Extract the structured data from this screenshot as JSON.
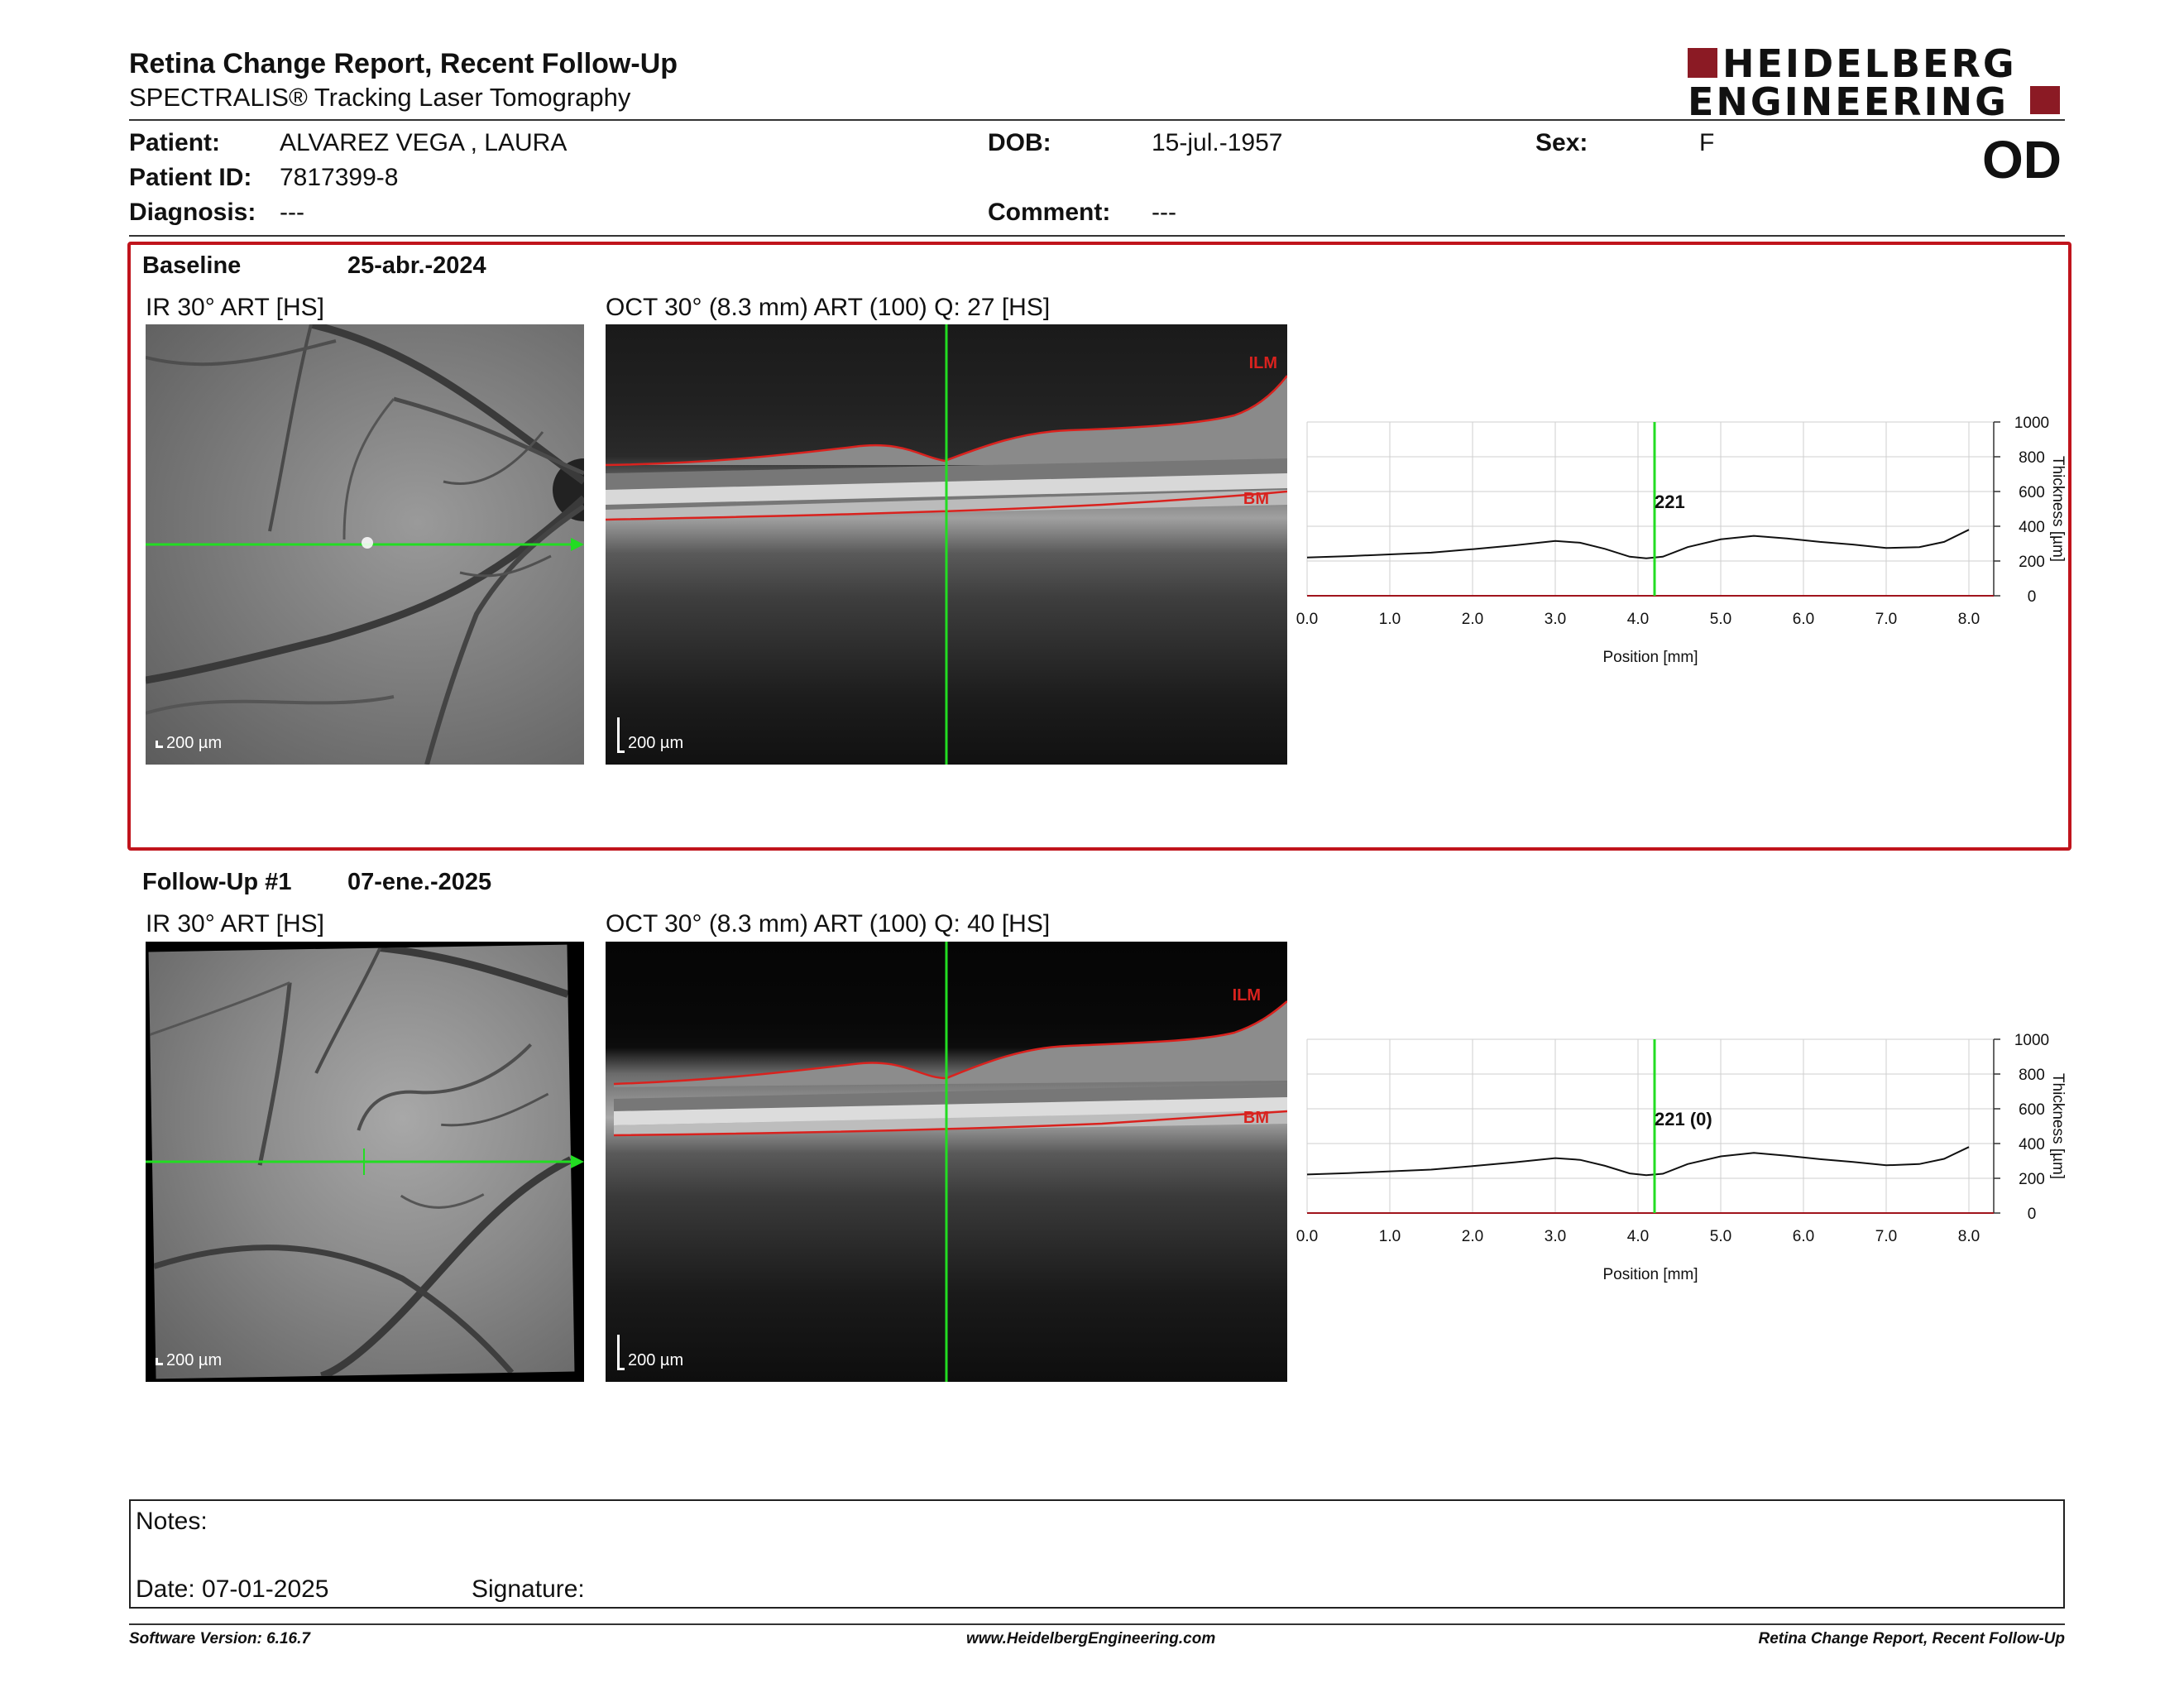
{
  "header": {
    "title": "Retina Change Report, Recent Follow-Up",
    "subtitle": "SPECTRALIS® Tracking Laser Tomography",
    "logo_line1": "HEIDELBERG",
    "logo_line2": "ENGINEERING",
    "eye": "OD",
    "brand_color": "#8b1a24"
  },
  "patient": {
    "patient_label": "Patient:",
    "patient_value": "ALVAREZ VEGA , LAURA",
    "id_label": "Patient ID:",
    "id_value": "7817399-8",
    "diagnosis_label": "Diagnosis:",
    "diagnosis_value": "---",
    "dob_label": "DOB:",
    "dob_value": "15-jul.-1957",
    "comment_label": "Comment:",
    "comment_value": "---",
    "sex_label": "Sex:",
    "sex_value": "F"
  },
  "baseline": {
    "label": "Baseline",
    "date": "25-abr.-2024",
    "ir_title": "IR 30° ART [HS]",
    "oct_title": "OCT 30° (8.3 mm) ART (100) Q: 27 [HS]",
    "scale_ir": "200 µm",
    "scale_oct": "200 µm",
    "ilm_label": "ILM",
    "bm_label": "BM",
    "cursor_value": "221",
    "highlight_color": "#c0141c"
  },
  "followup": {
    "label": "Follow-Up #1",
    "date": "07-ene.-2025",
    "ir_title": "IR 30° ART [HS]",
    "oct_title": "OCT 30° (8.3 mm) ART (100) Q: 40 [HS]",
    "scale_ir": "200 µm",
    "scale_oct": "200 µm",
    "ilm_label": "ILM",
    "bm_label": "BM",
    "cursor_value": "221 (0)"
  },
  "chart_data": [
    {
      "type": "line",
      "x": [
        0.0,
        0.5,
        1.0,
        1.5,
        2.0,
        2.5,
        3.0,
        3.3,
        3.6,
        3.9,
        4.1,
        4.3,
        4.6,
        5.0,
        5.4,
        5.8,
        6.2,
        6.6,
        7.0,
        7.4,
        7.7,
        8.0
      ],
      "series": [
        {
          "values": [
            220,
            228,
            238,
            248,
            268,
            290,
            315,
            305,
            270,
            225,
            215,
            225,
            280,
            325,
            345,
            330,
            310,
            295,
            275,
            280,
            310,
            380
          ]
        }
      ],
      "xticks": [
        "0.0",
        "1.0",
        "2.0",
        "3.0",
        "4.0",
        "5.0",
        "6.0",
        "7.0",
        "8.0"
      ],
      "yticks": [
        "0",
        "200",
        "400",
        "600",
        "800",
        "1000"
      ],
      "xlabel": "Position [mm]",
      "ylabel": "Thickness [µm]",
      "xlim": [
        0,
        8.3
      ],
      "ylim": [
        0,
        1000
      ],
      "cursor_x": 4.2,
      "grid": true
    },
    {
      "type": "line",
      "x": [
        0.0,
        0.5,
        1.0,
        1.5,
        2.0,
        2.5,
        3.0,
        3.3,
        3.6,
        3.9,
        4.1,
        4.3,
        4.6,
        5.0,
        5.4,
        5.8,
        6.2,
        6.6,
        7.0,
        7.4,
        7.7,
        8.0
      ],
      "series": [
        {
          "values": [
            222,
            230,
            240,
            250,
            270,
            292,
            316,
            306,
            272,
            228,
            218,
            226,
            282,
            326,
            346,
            330,
            310,
            294,
            275,
            282,
            312,
            380
          ]
        }
      ],
      "xticks": [
        "0.0",
        "1.0",
        "2.0",
        "3.0",
        "4.0",
        "5.0",
        "6.0",
        "7.0",
        "8.0"
      ],
      "yticks": [
        "0",
        "200",
        "400",
        "600",
        "800",
        "1000"
      ],
      "xlabel": "Position [mm]",
      "ylabel": "Thickness [µm]",
      "xlim": [
        0,
        8.3
      ],
      "ylim": [
        0,
        1000
      ],
      "cursor_x": 4.2,
      "grid": true
    }
  ],
  "notes": {
    "notes_label": "Notes:",
    "date_label": "Date: 07-01-2025",
    "signature_label": "Signature:"
  },
  "footer": {
    "software": "Software Version: 6.16.7",
    "website": "www.HeidelbergEngineering.com",
    "report_name": "Retina Change Report, Recent Follow-Up"
  }
}
